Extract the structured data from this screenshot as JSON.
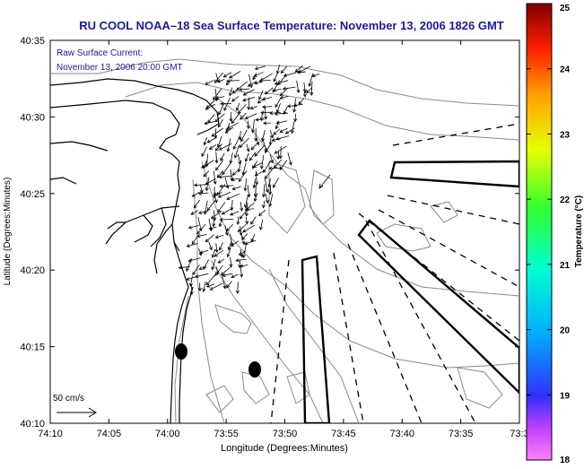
{
  "title": "RU COOL  NOAA–18  Sea Surface Temperature:  November 13, 2006 1826 GMT",
  "annotation": {
    "line1": "Raw Surface Current:",
    "line2": "November 13, 2006 20:00 GMT"
  },
  "scale_label": "50 cm/s",
  "x_axis": {
    "label": "Longitude (Degrees:Minutes)",
    "ticks": [
      "74:10",
      "74:05",
      "74:00",
      "73:55",
      "73:50",
      "73:45",
      "73:40",
      "73:35",
      "73:3"
    ]
  },
  "y_axis": {
    "label": "Latitude (Degrees:Minutes)",
    "ticks": [
      "40:35",
      "40:30",
      "40:25",
      "40:20",
      "40:15",
      "40:10"
    ]
  },
  "colorbar": {
    "label": "Temperature (°C)",
    "ticks": [
      "25",
      "24",
      "23",
      "22",
      "21",
      "20",
      "19",
      "18"
    ],
    "min": 18,
    "max": 25
  },
  "colors": {
    "title_color": "#1a1a9c",
    "annotation_color": "#1a1a9c",
    "land_fill": "#ffffff",
    "contour_color": "#8a8a8a",
    "vector_color": "#000000"
  }
}
